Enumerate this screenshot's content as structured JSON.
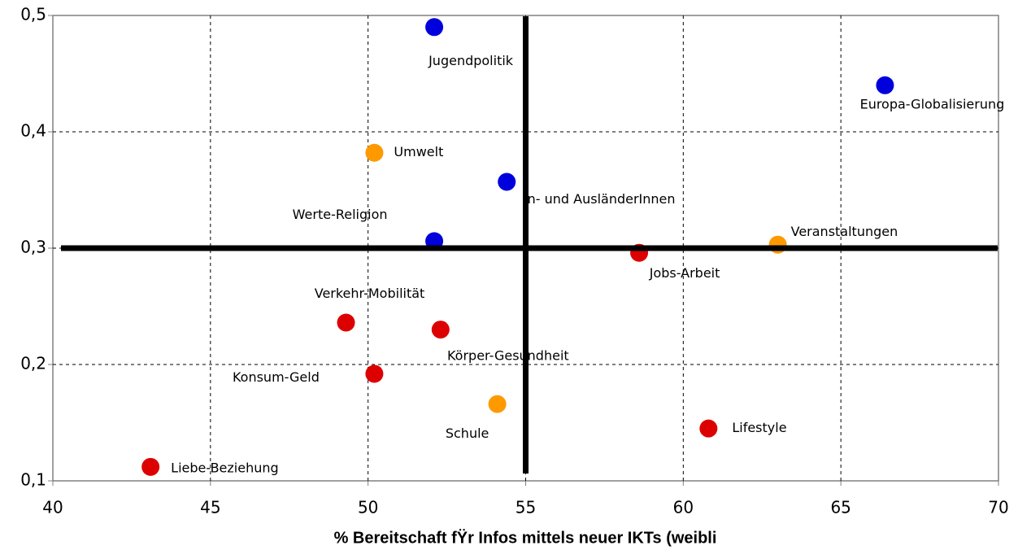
{
  "chart_data": {
    "type": "scatter",
    "x_label": "% Bereitschaft fŸr Infos mittels neuer IKTs (weibli",
    "point_labels": [
      "Jugendpolitik",
      "Europa-Globalisierung",
      "Umwelt",
      "In- und AusländerInnen",
      "Werte-Religion",
      "Veranstaltungen",
      "Jobs-Arbeit",
      "Verkehr-Mobilität",
      "Körper-Gesundheit",
      "Konsum-Geld",
      "Schule",
      "Lifestyle",
      "Liebe-Beziehung"
    ],
    "x": [
      52.1,
      66.4,
      50.2,
      54.4,
      52.1,
      63.0,
      58.6,
      49.3,
      52.3,
      50.2,
      54.1,
      60.8,
      43.1
    ],
    "y": [
      0.49,
      0.44,
      0.382,
      0.357,
      0.306,
      0.303,
      0.296,
      0.236,
      0.23,
      0.192,
      0.166,
      0.145,
      0.112
    ],
    "colors": [
      "#0000dd",
      "#0000dd",
      "#ff9900",
      "#0000dd",
      "#0000dd",
      "#ff9900",
      "#dd0000",
      "#dd0000",
      "#dd0000",
      "#dd0000",
      "#ff9900",
      "#dd0000",
      "#dd0000"
    ],
    "xlim": [
      40,
      70
    ],
    "xticks": [
      40,
      45,
      50,
      55,
      60,
      65,
      70
    ],
    "ylim": [
      0.1,
      0.5
    ],
    "yticks": [
      {
        "value": 0.1,
        "label": "0,1"
      },
      {
        "value": 0.2,
        "label": "0,2"
      },
      {
        "value": 0.3,
        "label": "0,3"
      },
      {
        "value": 0.4,
        "label": "0,4"
      },
      {
        "value": 0.5,
        "label": "0,5"
      }
    ],
    "reference_x": 55,
    "reference_y": 0.3,
    "grid": true
  }
}
